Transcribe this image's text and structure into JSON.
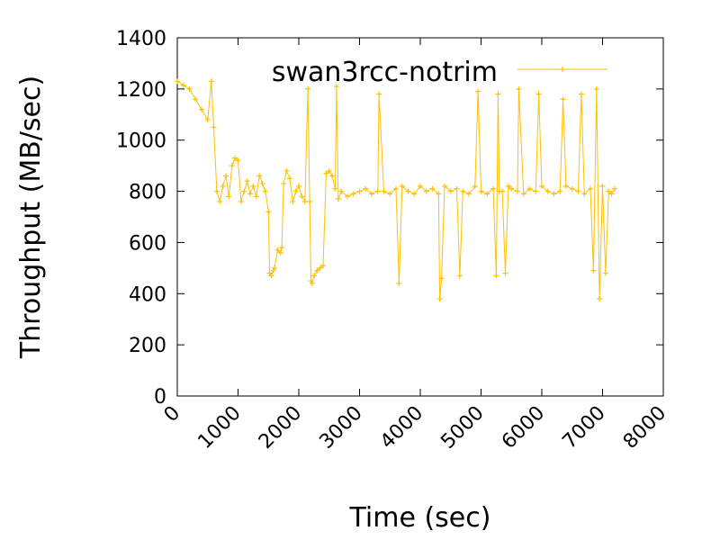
{
  "chart_data": {
    "type": "line",
    "title": "",
    "xlabel": "Time (sec)",
    "ylabel": "Throughput (MB/sec)",
    "xlim": [
      0,
      8000
    ],
    "ylim": [
      0,
      1400
    ],
    "xticks": [
      0,
      1000,
      2000,
      3000,
      4000,
      5000,
      6000,
      7000,
      8000
    ],
    "yticks": [
      0,
      200,
      400,
      600,
      800,
      1000,
      1200,
      1400
    ],
    "grid": false,
    "legend": "top-right",
    "series": [
      {
        "name": "swan3rcc-notrim",
        "color": "#ffc000",
        "marker": "plus",
        "x": [
          0,
          100,
          200,
          300,
          400,
          500,
          560,
          600,
          650,
          700,
          750,
          800,
          850,
          900,
          950,
          1000,
          1050,
          1100,
          1150,
          1200,
          1250,
          1300,
          1350,
          1400,
          1450,
          1500,
          1520,
          1550,
          1580,
          1600,
          1650,
          1700,
          1720,
          1750,
          1800,
          1850,
          1900,
          1950,
          2000,
          2050,
          2100,
          2150,
          2180,
          2200,
          2220,
          2250,
          2300,
          2350,
          2400,
          2450,
          2500,
          2550,
          2600,
          2620,
          2650,
          2700,
          2800,
          2900,
          3000,
          3100,
          3200,
          3300,
          3320,
          3400,
          3500,
          3600,
          3650,
          3700,
          3800,
          3900,
          4000,
          4100,
          4200,
          4300,
          4320,
          4350,
          4400,
          4500,
          4600,
          4650,
          4700,
          4800,
          4900,
          4950,
          5000,
          5100,
          5200,
          5250,
          5280,
          5300,
          5350,
          5400,
          5450,
          5500,
          5600,
          5620,
          5700,
          5800,
          5900,
          5950,
          6000,
          6100,
          6200,
          6300,
          6350,
          6400,
          6500,
          6600,
          6650,
          6700,
          6800,
          6850,
          6900,
          6950,
          7000,
          7050,
          7100,
          7150,
          7200
        ],
        "y": [
          1230,
          1215,
          1200,
          1160,
          1120,
          1080,
          1230,
          1050,
          800,
          760,
          820,
          860,
          780,
          900,
          930,
          920,
          760,
          800,
          840,
          790,
          820,
          780,
          860,
          830,
          800,
          720,
          480,
          470,
          490,
          500,
          570,
          560,
          580,
          830,
          880,
          850,
          760,
          800,
          820,
          780,
          760,
          1200,
          760,
          450,
          440,
          470,
          490,
          500,
          510,
          870,
          880,
          860,
          810,
          1210,
          770,
          800,
          780,
          790,
          800,
          810,
          790,
          800,
          1180,
          800,
          790,
          810,
          440,
          820,
          800,
          790,
          820,
          800,
          810,
          790,
          380,
          460,
          820,
          800,
          810,
          470,
          800,
          790,
          820,
          1190,
          800,
          790,
          810,
          470,
          1180,
          800,
          800,
          480,
          820,
          810,
          800,
          1200,
          790,
          810,
          800,
          1180,
          820,
          800,
          790,
          800,
          1160,
          820,
          810,
          800,
          1180,
          790,
          810,
          490,
          1200,
          380,
          820,
          480,
          800,
          790,
          810
        ]
      }
    ]
  }
}
